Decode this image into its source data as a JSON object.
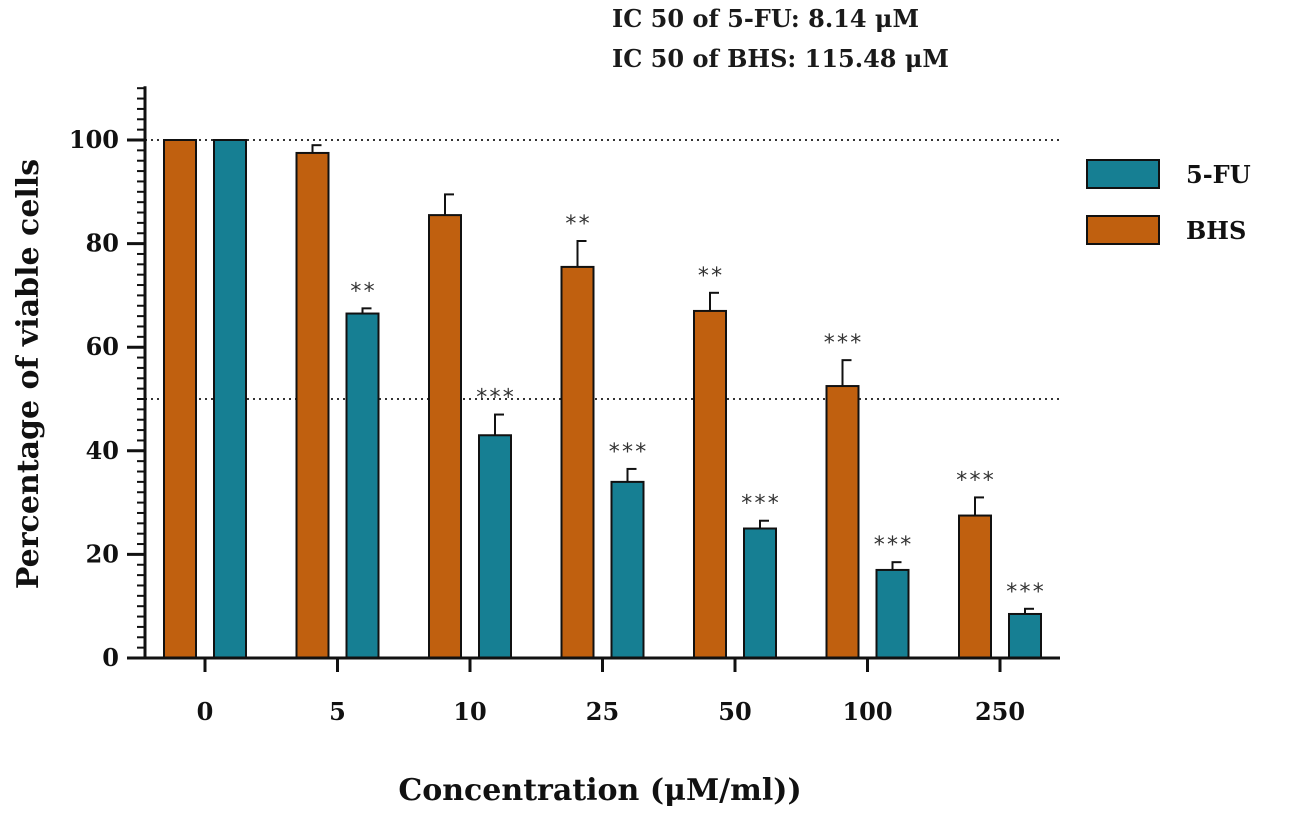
{
  "annotations": {
    "ic50_5fu": "IC 50 of 5-FU: 8.14  μM",
    "ic50_bhs": "IC 50 of BHS: 115.48 μM"
  },
  "chart_data": {
    "type": "bar",
    "categories": [
      "0",
      "5",
      "10",
      "25",
      "50",
      "100",
      "250"
    ],
    "xlabel": "Concentration (μM/ml))",
    "ylabel": "Percentage of viable cells",
    "ylim": [
      0,
      110
    ],
    "yticks": [
      0,
      20,
      40,
      60,
      80,
      100
    ],
    "reference_lines": [
      100,
      50
    ],
    "legend_position": "right",
    "series": [
      {
        "name": "BHS",
        "color": "#c0600f",
        "values": [
          100,
          97.5,
          85.5,
          75.5,
          67,
          52.5,
          27.5
        ],
        "errors": [
          0,
          1.5,
          4,
          5,
          3.5,
          5,
          3.5
        ],
        "significance": [
          "",
          "",
          "",
          "**",
          "**",
          "***",
          "***"
        ]
      },
      {
        "name": "5-FU",
        "color": "#167f93",
        "values": [
          100,
          66.5,
          43,
          34,
          25,
          17,
          8.5
        ],
        "errors": [
          0,
          1,
          4,
          2.5,
          1.5,
          1.5,
          1
        ],
        "significance": [
          "",
          "**",
          "***",
          "***",
          "***",
          "***",
          "***"
        ]
      }
    ],
    "legend_order": [
      "5-FU",
      "BHS"
    ]
  }
}
